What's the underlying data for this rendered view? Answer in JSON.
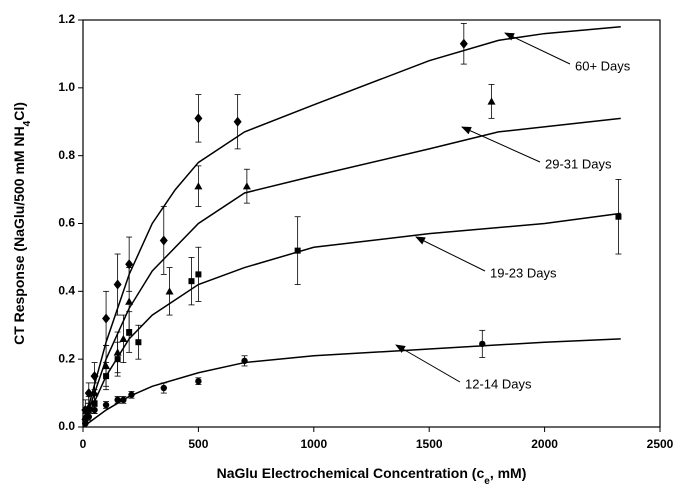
{
  "chart_data": {
    "type": "scatter",
    "xlabel": [
      "NaGlu Electrochemical Concentration (c",
      "e",
      ", mM)"
    ],
    "ylabel": [
      "CT Response (NaGlu/500 mM NH",
      "4",
      "Cl)"
    ],
    "xlim": [
      0,
      2500
    ],
    "ylim": [
      0,
      1.2
    ],
    "xticks": [
      0,
      500,
      1000,
      1500,
      2000,
      2500
    ],
    "yticks": [
      {
        "value": 0,
        "label": "0.0"
      },
      {
        "value": 0.2,
        "label": "0.2"
      },
      {
        "value": 0.4,
        "label": "0.4"
      },
      {
        "value": 0.6,
        "label": "0.6"
      },
      {
        "value": 0.8,
        "label": "0.8"
      },
      {
        "value": 1.0,
        "label": "1.0"
      },
      {
        "value": 1.2,
        "label": "1.2"
      }
    ],
    "series": [
      {
        "name": "60+ Days",
        "marker": "diamond",
        "color": "#000000",
        "x": [
          10,
          25,
          50,
          100,
          150,
          200,
          350,
          500,
          670,
          1650
        ],
        "values": [
          0.05,
          0.1,
          0.15,
          0.32,
          0.42,
          0.48,
          0.55,
          0.91,
          0.9,
          1.13
        ],
        "errors": [
          0.03,
          0.03,
          0.04,
          0.08,
          0.09,
          0.08,
          0.1,
          0.07,
          0.08,
          0.06
        ],
        "fit_x": [
          0,
          100,
          200,
          300,
          400,
          500,
          700,
          1000,
          1500,
          1800,
          2000,
          2330
        ],
        "fit_values": [
          0,
          0.25,
          0.45,
          0.6,
          0.7,
          0.78,
          0.87,
          0.95,
          1.08,
          1.14,
          1.16,
          1.18
        ]
      },
      {
        "name": "29-31 Days",
        "marker": "triangle",
        "color": "#000000",
        "x": [
          10,
          25,
          50,
          100,
          150,
          175,
          200,
          375,
          500,
          710,
          1770
        ],
        "values": [
          0.03,
          0.06,
          0.1,
          0.18,
          0.22,
          0.26,
          0.37,
          0.4,
          0.71,
          0.71,
          0.96
        ],
        "errors": [
          0.02,
          0.03,
          0.03,
          0.06,
          0.06,
          0.07,
          0.1,
          0.07,
          0.06,
          0.05,
          0.05
        ],
        "fit_x": [
          0,
          100,
          200,
          300,
          500,
          700,
          1000,
          1500,
          1800,
          2330
        ],
        "fit_values": [
          0,
          0.2,
          0.35,
          0.46,
          0.6,
          0.69,
          0.74,
          0.82,
          0.87,
          0.91
        ]
      },
      {
        "name": "19-23 Days",
        "marker": "square",
        "color": "#000000",
        "x": [
          10,
          25,
          50,
          100,
          150,
          200,
          240,
          470,
          500,
          930,
          2320
        ],
        "values": [
          0.02,
          0.05,
          0.07,
          0.15,
          0.2,
          0.28,
          0.25,
          0.43,
          0.45,
          0.52,
          0.62
        ],
        "errors": [
          0.02,
          0.02,
          0.03,
          0.04,
          0.05,
          0.06,
          0.05,
          0.07,
          0.08,
          0.1,
          0.11
        ],
        "fit_x": [
          0,
          100,
          200,
          300,
          500,
          700,
          1000,
          1500,
          2000,
          2330
        ],
        "fit_values": [
          0,
          0.15,
          0.26,
          0.33,
          0.42,
          0.47,
          0.53,
          0.57,
          0.6,
          0.63
        ]
      },
      {
        "name": "12-14 Days",
        "marker": "circle",
        "color": "#000000",
        "x": [
          10,
          25,
          50,
          100,
          150,
          175,
          210,
          350,
          500,
          700,
          1730
        ],
        "values": [
          0.01,
          0.03,
          0.05,
          0.065,
          0.08,
          0.08,
          0.095,
          0.115,
          0.135,
          0.195,
          0.245
        ],
        "errors": [
          0.01,
          0.01,
          0.01,
          0.01,
          0.01,
          0.01,
          0.01,
          0.015,
          0.01,
          0.015,
          0.04
        ],
        "fit_x": [
          0,
          100,
          200,
          300,
          500,
          700,
          1000,
          1500,
          2000,
          2330
        ],
        "fit_values": [
          0,
          0.05,
          0.09,
          0.12,
          0.16,
          0.19,
          0.21,
          0.23,
          0.25,
          0.26
        ]
      }
    ]
  }
}
